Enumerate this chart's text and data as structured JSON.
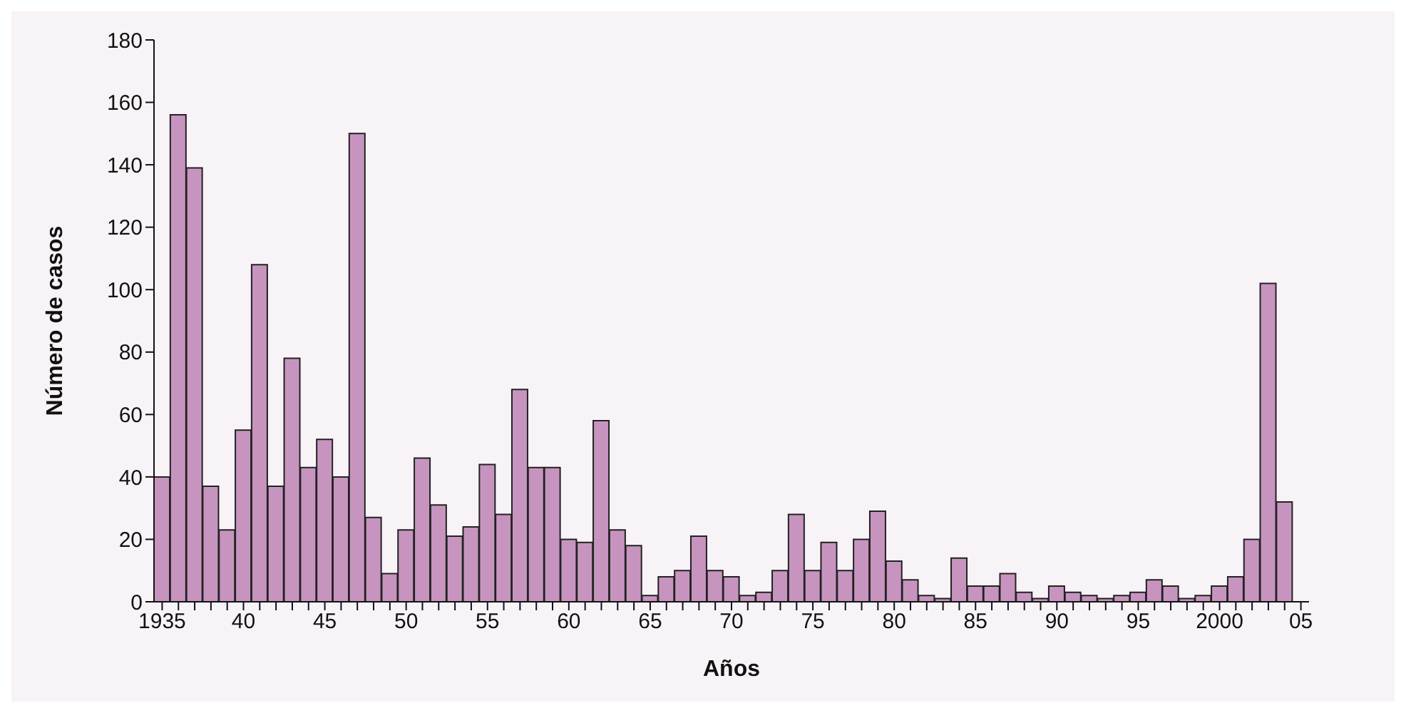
{
  "chart_data": {
    "type": "bar",
    "xlabel": "Años",
    "ylabel": "Número de casos",
    "categories": [
      "1935",
      null,
      null,
      null,
      null,
      "40",
      null,
      null,
      null,
      null,
      "45",
      null,
      null,
      null,
      null,
      "50",
      null,
      null,
      null,
      null,
      "55",
      null,
      null,
      null,
      null,
      "60",
      null,
      null,
      null,
      null,
      "65",
      null,
      null,
      null,
      null,
      "70",
      null,
      null,
      null,
      null,
      "75",
      null,
      null,
      null,
      null,
      "80",
      null,
      null,
      null,
      null,
      "85",
      null,
      null,
      null,
      null,
      "90",
      null,
      null,
      null,
      null,
      "95",
      null,
      null,
      null,
      null,
      "2000",
      null,
      null,
      null,
      null,
      "05"
    ],
    "values": [
      40,
      156,
      139,
      37,
      23,
      55,
      108,
      37,
      78,
      43,
      52,
      40,
      150,
      27,
      9,
      23,
      46,
      31,
      21,
      24,
      44,
      28,
      68,
      43,
      43,
      20,
      19,
      58,
      23,
      18,
      2,
      8,
      10,
      21,
      10,
      8,
      2,
      3,
      10,
      28,
      10,
      19,
      10,
      20,
      29,
      13,
      7,
      2,
      1,
      14,
      5,
      5,
      9,
      3,
      1,
      5,
      3,
      2,
      1,
      2,
      3,
      7,
      5,
      1,
      2,
      5,
      8,
      20,
      102,
      32,
      null
    ],
    "color": "#c794c0",
    "ylim": [
      0,
      180
    ],
    "yticks": [
      0,
      20,
      40,
      60,
      80,
      100,
      120,
      140,
      160,
      180
    ],
    "grid": false,
    "legend": false
  }
}
